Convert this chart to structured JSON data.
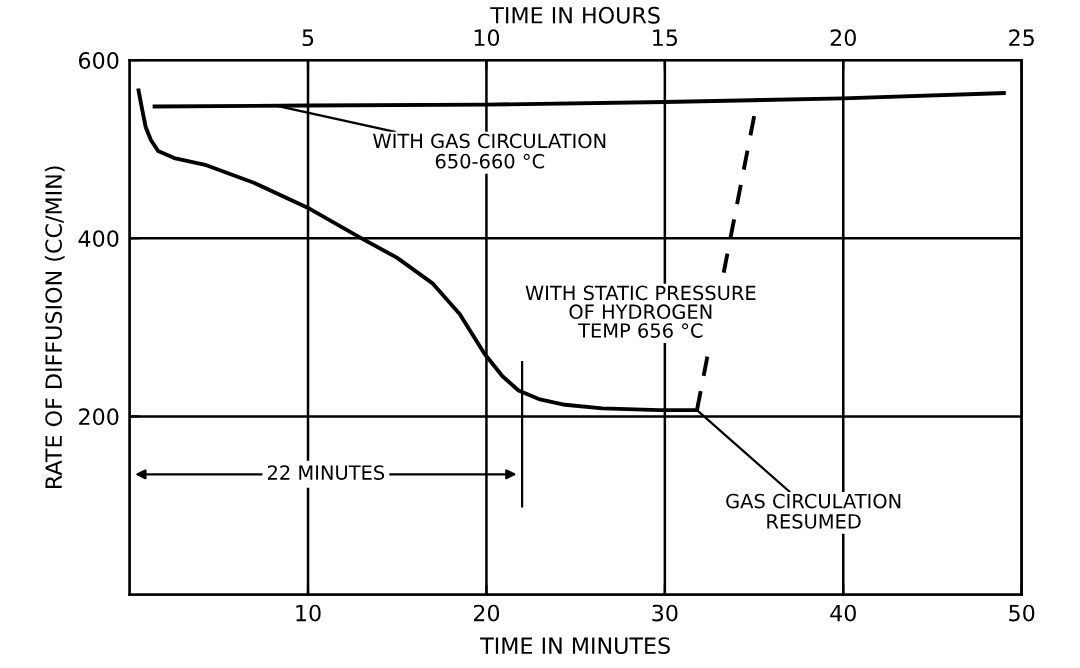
{
  "chart_data": {
    "type": "line",
    "xlabel": "TIME IN MINUTES",
    "x2label": "TIME IN HOURS",
    "ylabel": "RATE OF DIFFUSION (CC/MIN)",
    "xlim": [
      0,
      50
    ],
    "xticks": [
      10,
      20,
      30,
      40,
      50
    ],
    "x2lim": [
      0,
      25
    ],
    "x2ticks": [
      5,
      10,
      15,
      20,
      25
    ],
    "ylim": [
      0,
      600
    ],
    "yticks": [
      200,
      400,
      600
    ],
    "grid": true,
    "marker": "none",
    "series": [
      {
        "color": "#000000",
        "line_style": "solid",
        "x": [
          0.5,
          0.7,
          0.9,
          1.2,
          1.6,
          2.5,
          4.3,
          7,
          10.1,
          12.9,
          15,
          17,
          18.5,
          19.9,
          20.9,
          21.8,
          23,
          24.4,
          26.5,
          29.7,
          31.8
        ],
        "values": [
          566,
          545,
          525,
          510,
          498,
          490,
          482,
          462,
          433,
          401,
          378,
          349,
          315,
          270,
          245,
          229,
          219,
          213,
          209,
          207,
          207
        ]
      },
      {
        "color": "#000000",
        "line_style": "solid",
        "axis": "x2",
        "x": [
          0.7,
          5,
          10,
          15,
          20,
          24.5
        ],
        "values": [
          548,
          549,
          550,
          553,
          557,
          563
        ]
      },
      {
        "color": "#000000",
        "line_style": "dashed",
        "x": [
          31.8,
          35.2
        ],
        "values": [
          207,
          557
        ]
      }
    ],
    "annotations": [
      {
        "text": "WITH GAS CIRCULATION\n650-660 °C",
        "x": 8.2,
        "y": 549
      },
      {
        "text": "WITH STATIC PRESSURE\nOF HYDROGEN\nTEMP 656 °C",
        "x": 19,
        "y": 300
      },
      {
        "text": "GAS CIRCULATION\nRESUMED",
        "x": 31.8,
        "y": 207
      },
      "22 MINUTES"
    ]
  }
}
